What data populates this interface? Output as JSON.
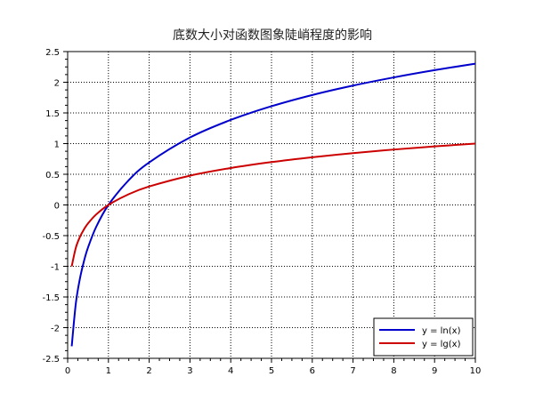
{
  "chart_data": {
    "type": "line",
    "title": "底数大小对函数图象陡峭程度的影响",
    "xlabel": "",
    "ylabel": "",
    "xlim": [
      0,
      10
    ],
    "ylim": [
      -2.5,
      2.5
    ],
    "x_ticks": [
      "0",
      "1",
      "2",
      "3",
      "4",
      "5",
      "6",
      "7",
      "8",
      "9",
      "10"
    ],
    "y_ticks": [
      "-2.5",
      "-2",
      "-1.5",
      "-1",
      "-0.5",
      "0",
      "0.5",
      "1",
      "1.5",
      "2",
      "2.5"
    ],
    "grid": true,
    "legend_position": "bottom-right",
    "x": [
      0.1,
      0.2,
      0.3,
      0.4,
      0.5,
      0.7,
      1,
      1.5,
      2,
      3,
      4,
      5,
      6,
      7,
      8,
      9,
      10
    ],
    "series": [
      {
        "name": "y = ln(x)",
        "color": "#0000cc",
        "values": [
          -2.303,
          -1.609,
          -1.204,
          -0.916,
          -0.693,
          -0.357,
          0,
          0.405,
          0.693,
          1.099,
          1.386,
          1.609,
          1.792,
          1.946,
          2.079,
          2.197,
          2.303
        ]
      },
      {
        "name": "y = lg(x)",
        "color": "#cc0000",
        "values": [
          -1,
          -0.699,
          -0.523,
          -0.398,
          -0.301,
          -0.155,
          0,
          0.176,
          0.301,
          0.477,
          0.602,
          0.699,
          0.778,
          0.845,
          0.903,
          0.954,
          1
        ]
      }
    ]
  }
}
